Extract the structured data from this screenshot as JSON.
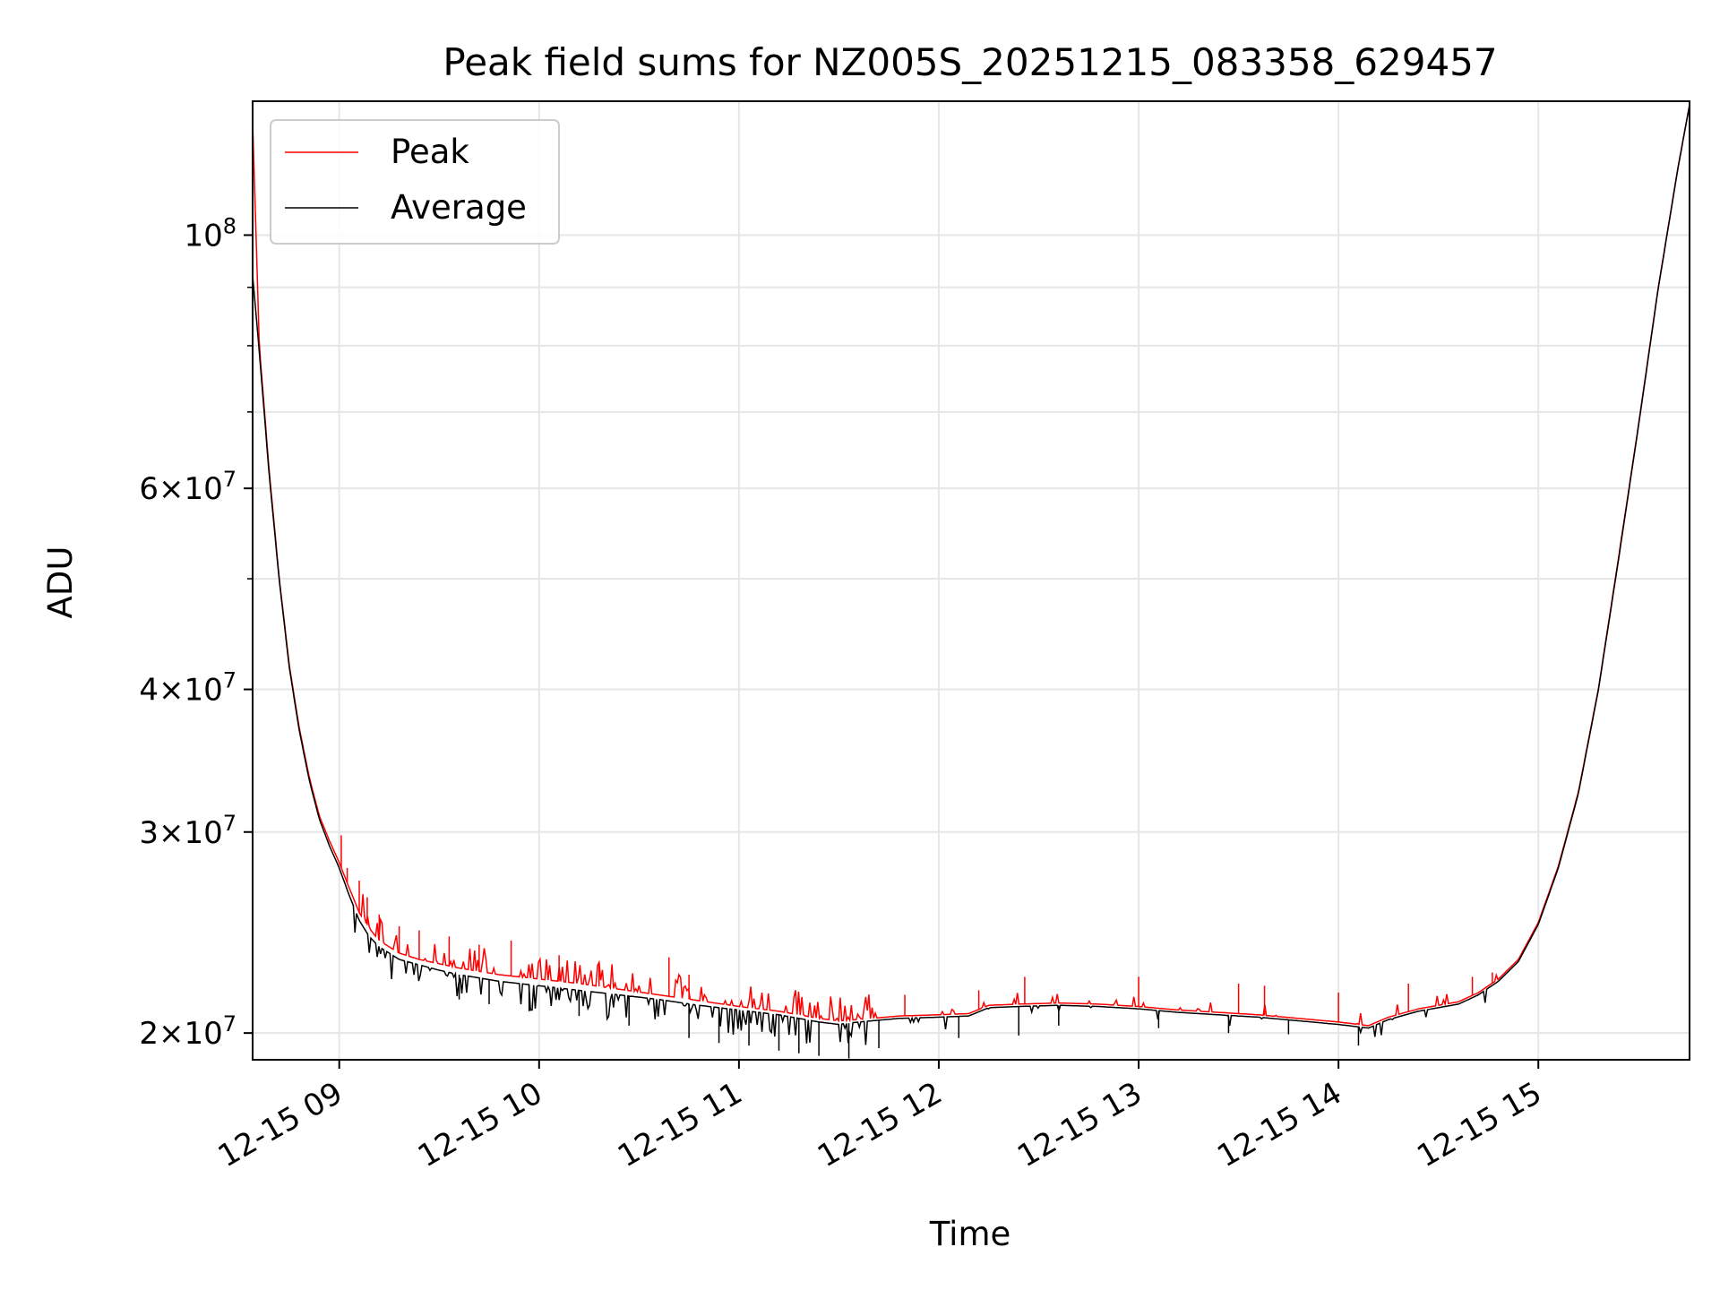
{
  "chart_data": {
    "type": "line",
    "title": "Peak field sums for NZ005S_20251215_083358_629457",
    "xlabel": "Time",
    "ylabel": "ADU",
    "yscale": "log",
    "xlim_hours": [
      8.5665,
      15.7566
    ],
    "ylim": [
      18950000,
      131000000
    ],
    "grid": true,
    "x_ticks": [
      {
        "value": 9,
        "label": "12-15 09"
      },
      {
        "value": 10,
        "label": "12-15 10"
      },
      {
        "value": 11,
        "label": "12-15 11"
      },
      {
        "value": 12,
        "label": "12-15 12"
      },
      {
        "value": 13,
        "label": "12-15 13"
      },
      {
        "value": 14,
        "label": "12-15 14"
      },
      {
        "value": 15,
        "label": "12-15 15"
      }
    ],
    "y_major_ticks": [
      {
        "value": 100000000,
        "base": "10",
        "exp": "8",
        "mantissa": ""
      },
      {
        "value": 60000000,
        "base": "10",
        "exp": "7",
        "mantissa": "6"
      },
      {
        "value": 40000000,
        "base": "10",
        "exp": "7",
        "mantissa": "4"
      },
      {
        "value": 30000000,
        "base": "10",
        "exp": "7",
        "mantissa": "3"
      },
      {
        "value": 20000000,
        "base": "10",
        "exp": "7",
        "mantissa": "2"
      }
    ],
    "y_minor_ticks": [
      50000000,
      70000000,
      80000000,
      90000000
    ],
    "legend": {
      "placement": "upper-left",
      "entries": [
        {
          "label": "Peak",
          "color": "#ff0000"
        },
        {
          "label": "Average",
          "color": "#000000"
        }
      ]
    },
    "series": [
      {
        "name": "Peak",
        "color": "#ff0000",
        "baseline": [
          [
            8.567,
            125000000
          ],
          [
            8.6,
            80000000
          ],
          [
            8.65,
            62000000
          ],
          [
            8.7,
            50000000
          ],
          [
            8.75,
            42000000
          ],
          [
            8.8,
            37000000
          ],
          [
            8.85,
            33500000
          ],
          [
            8.9,
            31000000
          ],
          [
            8.95,
            29500000
          ],
          [
            9.0,
            28200000
          ],
          [
            9.05,
            26800000
          ],
          [
            9.1,
            25500000
          ],
          [
            9.15,
            24700000
          ],
          [
            9.2,
            24100000
          ],
          [
            9.3,
            23500000
          ],
          [
            9.4,
            23200000
          ],
          [
            9.5,
            23000000
          ],
          [
            9.6,
            22800000
          ],
          [
            9.7,
            22650000
          ],
          [
            9.8,
            22500000
          ],
          [
            9.9,
            22400000
          ],
          [
            10.0,
            22300000
          ],
          [
            10.2,
            22100000
          ],
          [
            10.4,
            21850000
          ],
          [
            10.6,
            21600000
          ],
          [
            10.8,
            21350000
          ],
          [
            11.0,
            21100000
          ],
          [
            11.2,
            20900000
          ],
          [
            11.4,
            20600000
          ],
          [
            11.5,
            20500000
          ],
          [
            11.6,
            20550000
          ],
          [
            11.8,
            20700000
          ],
          [
            12.0,
            20750000
          ],
          [
            12.15,
            20800000
          ],
          [
            12.25,
            21150000
          ],
          [
            12.4,
            21200000
          ],
          [
            12.6,
            21250000
          ],
          [
            12.8,
            21200000
          ],
          [
            13.0,
            21100000
          ],
          [
            13.2,
            20950000
          ],
          [
            13.4,
            20850000
          ],
          [
            13.6,
            20750000
          ],
          [
            13.8,
            20600000
          ],
          [
            14.0,
            20450000
          ],
          [
            14.15,
            20300000
          ],
          [
            14.25,
            20650000
          ],
          [
            14.4,
            21000000
          ],
          [
            14.6,
            21300000
          ],
          [
            14.7,
            21700000
          ],
          [
            14.8,
            22300000
          ],
          [
            14.9,
            23200000
          ],
          [
            15.0,
            25000000
          ],
          [
            15.1,
            28000000
          ],
          [
            15.2,
            32500000
          ],
          [
            15.3,
            40000000
          ],
          [
            15.4,
            52000000
          ],
          [
            15.5,
            68000000
          ],
          [
            15.6,
            90000000
          ],
          [
            15.7,
            115000000
          ],
          [
            15.756,
            130000000
          ]
        ],
        "spikes": [
          [
            9.01,
            29800000
          ],
          [
            9.04,
            27900000
          ],
          [
            9.1,
            27200000
          ],
          [
            9.14,
            26300000
          ],
          [
            9.2,
            25400000
          ],
          [
            9.3,
            24800000
          ],
          [
            9.4,
            24600000
          ],
          [
            9.55,
            24300000
          ],
          [
            9.7,
            23900000
          ],
          [
            9.86,
            24100000
          ],
          [
            10.1,
            23400000
          ],
          [
            10.3,
            23100000
          ],
          [
            10.65,
            23300000
          ],
          [
            10.75,
            22500000
          ],
          [
            11.83,
            21600000
          ],
          [
            12.2,
            21800000
          ],
          [
            12.43,
            22400000
          ],
          [
            13.0,
            22400000
          ],
          [
            13.5,
            22100000
          ],
          [
            13.63,
            22000000
          ],
          [
            14.0,
            21700000
          ],
          [
            14.35,
            22100000
          ],
          [
            14.67,
            22400000
          ],
          [
            14.77,
            22600000
          ]
        ]
      },
      {
        "name": "Average",
        "color": "#000000",
        "baseline": [
          [
            8.567,
            92000000
          ],
          [
            8.6,
            79000000
          ],
          [
            8.65,
            61500000
          ],
          [
            8.7,
            49800000
          ],
          [
            8.75,
            41800000
          ],
          [
            8.8,
            36800000
          ],
          [
            8.85,
            33300000
          ],
          [
            8.9,
            30800000
          ],
          [
            8.95,
            29200000
          ],
          [
            9.0,
            27900000
          ],
          [
            9.05,
            26400000
          ],
          [
            9.1,
            25100000
          ],
          [
            9.15,
            24300000
          ],
          [
            9.2,
            23800000
          ],
          [
            9.3,
            23200000
          ],
          [
            9.4,
            22950000
          ],
          [
            9.5,
            22700000
          ],
          [
            9.6,
            22500000
          ],
          [
            9.7,
            22350000
          ],
          [
            9.8,
            22200000
          ],
          [
            9.9,
            22100000
          ],
          [
            10.0,
            22000000
          ],
          [
            10.2,
            21800000
          ],
          [
            10.4,
            21600000
          ],
          [
            10.6,
            21400000
          ],
          [
            10.8,
            21150000
          ],
          [
            11.0,
            20950000
          ],
          [
            11.2,
            20750000
          ],
          [
            11.4,
            20450000
          ],
          [
            11.5,
            20350000
          ],
          [
            11.6,
            20450000
          ],
          [
            11.8,
            20600000
          ],
          [
            12.0,
            20650000
          ],
          [
            12.15,
            20700000
          ],
          [
            12.25,
            21050000
          ],
          [
            12.4,
            21100000
          ],
          [
            12.6,
            21150000
          ],
          [
            12.8,
            21100000
          ],
          [
            13.0,
            21000000
          ],
          [
            13.2,
            20850000
          ],
          [
            13.4,
            20750000
          ],
          [
            13.6,
            20650000
          ],
          [
            13.8,
            20500000
          ],
          [
            14.0,
            20350000
          ],
          [
            14.15,
            20200000
          ],
          [
            14.25,
            20550000
          ],
          [
            14.4,
            20900000
          ],
          [
            14.6,
            21200000
          ],
          [
            14.7,
            21600000
          ],
          [
            14.8,
            22200000
          ],
          [
            14.9,
            23100000
          ],
          [
            15.0,
            24900000
          ],
          [
            15.1,
            27900000
          ],
          [
            15.2,
            32400000
          ],
          [
            15.3,
            39900000
          ],
          [
            15.4,
            51800000
          ],
          [
            15.5,
            67800000
          ],
          [
            15.6,
            89800000
          ],
          [
            15.7,
            114800000
          ],
          [
            15.756,
            129800000
          ]
        ],
        "dips": [
          [
            9.6,
            21400000
          ],
          [
            9.75,
            21200000
          ],
          [
            9.95,
            20900000
          ],
          [
            10.2,
            20700000
          ],
          [
            10.45,
            20300000
          ],
          [
            10.75,
            19800000
          ],
          [
            10.9,
            19600000
          ],
          [
            11.05,
            19500000
          ],
          [
            11.2,
            19300000
          ],
          [
            11.3,
            19200000
          ],
          [
            11.4,
            19100000
          ],
          [
            11.55,
            19000000
          ],
          [
            11.7,
            19400000
          ],
          [
            12.1,
            19800000
          ],
          [
            12.4,
            19900000
          ],
          [
            12.6,
            20300000
          ],
          [
            13.1,
            20200000
          ],
          [
            13.45,
            20000000
          ],
          [
            13.75,
            19950000
          ],
          [
            14.1,
            19500000
          ]
        ]
      }
    ]
  }
}
